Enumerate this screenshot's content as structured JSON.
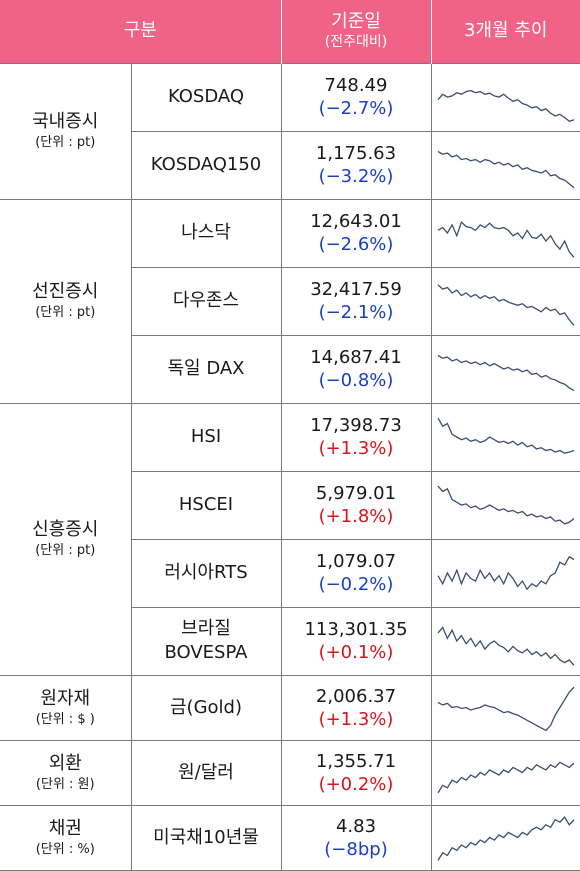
{
  "header": {
    "category": "구분",
    "base_date": "기준일",
    "base_date_sub": "(전주대비)",
    "trend": "3개월 추이"
  },
  "groups": [
    {
      "name": "국내증시",
      "unit": "(단위 : pt)"
    },
    {
      "name": "선진증시",
      "unit": "(단위 : pt)"
    },
    {
      "name": "신흥증시",
      "unit": "(단위 : pt)"
    },
    {
      "name": "원자재",
      "unit": "(단위 : $ )"
    },
    {
      "name": "외환",
      "unit": "(단위 : 원)"
    },
    {
      "name": "채권",
      "unit": "(단위 : %)"
    }
  ],
  "rows": [
    {
      "item": "KOSDAQ",
      "value": "748.49",
      "change": "(−2.7%)",
      "sign": "neg",
      "trend": [
        0.45,
        0.55,
        0.5,
        0.52,
        0.58,
        0.55,
        0.6,
        0.62,
        0.58,
        0.6,
        0.55,
        0.57,
        0.52,
        0.5,
        0.55,
        0.48,
        0.42,
        0.45,
        0.38,
        0.35,
        0.3,
        0.32,
        0.25,
        0.28,
        0.2,
        0.15,
        0.18,
        0.12,
        0.05,
        0.08
      ]
    },
    {
      "item": "KOSDAQ150",
      "value": "1,175.63",
      "change": "(−3.2%)",
      "sign": "neg",
      "trend": [
        0.75,
        0.7,
        0.72,
        0.65,
        0.68,
        0.6,
        0.62,
        0.58,
        0.6,
        0.55,
        0.6,
        0.58,
        0.52,
        0.55,
        0.5,
        0.53,
        0.47,
        0.5,
        0.42,
        0.45,
        0.4,
        0.38,
        0.35,
        0.4,
        0.3,
        0.32,
        0.25,
        0.22,
        0.15,
        0.08
      ]
    },
    {
      "item": "나스닥",
      "value": "12,643.01",
      "change": "(−2.6%)",
      "sign": "neg",
      "trend": [
        0.55,
        0.6,
        0.5,
        0.65,
        0.45,
        0.7,
        0.62,
        0.6,
        0.55,
        0.65,
        0.6,
        0.68,
        0.6,
        0.58,
        0.6,
        0.55,
        0.45,
        0.5,
        0.4,
        0.55,
        0.42,
        0.4,
        0.48,
        0.35,
        0.45,
        0.3,
        0.2,
        0.35,
        0.15,
        0.05
      ]
    },
    {
      "item": "다우존스",
      "value": "32,417.59",
      "change": "(−2.1%)",
      "sign": "neg",
      "trend": [
        0.8,
        0.72,
        0.75,
        0.65,
        0.7,
        0.6,
        0.65,
        0.58,
        0.62,
        0.55,
        0.6,
        0.55,
        0.58,
        0.5,
        0.53,
        0.48,
        0.45,
        0.42,
        0.45,
        0.38,
        0.4,
        0.35,
        0.3,
        0.38,
        0.32,
        0.35,
        0.25,
        0.28,
        0.15,
        0.05
      ]
    },
    {
      "item": "독일 DAX",
      "value": "14,687.41",
      "change": "(−0.8%)",
      "sign": "neg",
      "trend": [
        0.75,
        0.7,
        0.72,
        0.65,
        0.68,
        0.62,
        0.65,
        0.6,
        0.63,
        0.58,
        0.62,
        0.56,
        0.6,
        0.55,
        0.5,
        0.53,
        0.48,
        0.5,
        0.45,
        0.48,
        0.4,
        0.42,
        0.35,
        0.38,
        0.32,
        0.3,
        0.25,
        0.22,
        0.15,
        0.1
      ]
    },
    {
      "item": "HSI",
      "value": "17,398.73",
      "change": "(+1.3%)",
      "sign": "pos",
      "trend": [
        0.85,
        0.7,
        0.75,
        0.55,
        0.5,
        0.45,
        0.48,
        0.42,
        0.45,
        0.4,
        0.43,
        0.5,
        0.45,
        0.4,
        0.42,
        0.38,
        0.42,
        0.35,
        0.4,
        0.32,
        0.35,
        0.28,
        0.3,
        0.25,
        0.27,
        0.22,
        0.25,
        0.2,
        0.22,
        0.25
      ]
    },
    {
      "item": "HSCEI",
      "value": "5,979.01",
      "change": "(+1.8%)",
      "sign": "pos",
      "trend": [
        0.85,
        0.75,
        0.8,
        0.6,
        0.55,
        0.5,
        0.52,
        0.45,
        0.48,
        0.42,
        0.45,
        0.5,
        0.45,
        0.4,
        0.43,
        0.38,
        0.4,
        0.35,
        0.38,
        0.3,
        0.33,
        0.28,
        0.3,
        0.25,
        0.28,
        0.2,
        0.22,
        0.15,
        0.18,
        0.25
      ]
    },
    {
      "item": "러시아RTS",
      "value": "1,079.07",
      "change": "(−0.2%)",
      "sign": "neg",
      "trend": [
        0.45,
        0.3,
        0.5,
        0.35,
        0.55,
        0.3,
        0.5,
        0.4,
        0.35,
        0.55,
        0.4,
        0.5,
        0.35,
        0.45,
        0.3,
        0.5,
        0.4,
        0.25,
        0.35,
        0.2,
        0.3,
        0.25,
        0.35,
        0.3,
        0.45,
        0.5,
        0.7,
        0.65,
        0.8,
        0.75
      ]
    },
    {
      "item": "브라질\nBOVESPA",
      "value": "113,301.35",
      "change": "(+0.1%)",
      "sign": "pos",
      "trend": [
        0.65,
        0.75,
        0.55,
        0.7,
        0.5,
        0.6,
        0.45,
        0.55,
        0.4,
        0.5,
        0.35,
        0.45,
        0.5,
        0.42,
        0.38,
        0.3,
        0.4,
        0.32,
        0.28,
        0.35,
        0.25,
        0.3,
        0.22,
        0.28,
        0.18,
        0.25,
        0.15,
        0.1,
        0.15,
        0.05
      ]
    },
    {
      "item": "금(Gold)",
      "value": "2,006.37",
      "change": "(+1.3%)",
      "sign": "pos",
      "trend": [
        0.6,
        0.55,
        0.58,
        0.5,
        0.52,
        0.48,
        0.5,
        0.45,
        0.48,
        0.5,
        0.55,
        0.52,
        0.5,
        0.45,
        0.4,
        0.42,
        0.38,
        0.35,
        0.3,
        0.25,
        0.2,
        0.15,
        0.1,
        0.05,
        0.15,
        0.35,
        0.5,
        0.65,
        0.8,
        0.9
      ]
    },
    {
      "item": "원/달러",
      "value": "1,355.71",
      "change": "(+0.2%)",
      "sign": "pos",
      "trend": [
        0.1,
        0.25,
        0.2,
        0.35,
        0.3,
        0.4,
        0.35,
        0.45,
        0.4,
        0.5,
        0.45,
        0.55,
        0.5,
        0.45,
        0.55,
        0.5,
        0.6,
        0.55,
        0.5,
        0.6,
        0.55,
        0.65,
        0.6,
        0.55,
        0.65,
        0.6,
        0.7,
        0.65,
        0.6,
        0.68
      ]
    },
    {
      "item": "미국채10년물",
      "value": "4.83",
      "change": "(−8bp)",
      "sign": "neg",
      "trend": [
        0.05,
        0.2,
        0.15,
        0.3,
        0.25,
        0.35,
        0.3,
        0.4,
        0.35,
        0.45,
        0.4,
        0.5,
        0.45,
        0.55,
        0.5,
        0.6,
        0.55,
        0.5,
        0.6,
        0.55,
        0.65,
        0.7,
        0.65,
        0.75,
        0.7,
        0.85,
        0.8,
        0.9,
        0.75,
        0.85
      ]
    }
  ]
}
